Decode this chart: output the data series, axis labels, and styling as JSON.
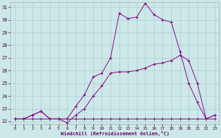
{
  "title": "",
  "xlabel": "Windchill (Refroidissement éolien,°C)",
  "ylabel": "",
  "bg_color": "#cce8e8",
  "line_color": "#880088",
  "grid_color": "#aacccc",
  "xmin": 0,
  "xmax": 23,
  "ymin": 22,
  "ymax": 31,
  "x_ticks": [
    0,
    1,
    2,
    3,
    4,
    5,
    6,
    7,
    8,
    9,
    10,
    11,
    12,
    13,
    14,
    15,
    16,
    17,
    18,
    19,
    20,
    21,
    22,
    23
  ],
  "y_ticks": [
    22,
    23,
    24,
    25,
    26,
    27,
    28,
    29,
    30,
    31
  ],
  "series1_x": [
    0,
    1,
    2,
    3,
    4,
    5,
    6,
    7,
    8,
    9,
    10,
    11,
    12,
    13,
    14,
    15,
    16,
    17,
    18,
    19,
    20,
    21,
    22,
    23
  ],
  "series1_y": [
    22.2,
    22.2,
    22.5,
    22.8,
    22.2,
    22.2,
    22.2,
    23.2,
    24.1,
    25.5,
    25.8,
    27.0,
    30.5,
    30.1,
    30.2,
    31.3,
    30.4,
    30.0,
    29.8,
    27.5,
    25.0,
    23.5,
    22.2,
    22.5
  ],
  "series2_x": [
    0,
    1,
    2,
    3,
    4,
    5,
    6,
    7,
    8,
    9,
    10,
    11,
    12,
    13,
    14,
    15,
    16,
    17,
    18,
    19,
    20,
    21,
    22,
    23
  ],
  "series2_y": [
    22.2,
    22.2,
    22.5,
    22.8,
    22.2,
    22.2,
    21.9,
    22.5,
    23.0,
    24.0,
    24.8,
    25.8,
    25.9,
    25.9,
    26.0,
    26.2,
    26.5,
    26.6,
    26.8,
    27.2,
    26.8,
    25.0,
    22.2,
    22.5
  ],
  "series3_x": [
    0,
    1,
    2,
    3,
    4,
    5,
    6,
    7,
    8,
    9,
    10,
    11,
    12,
    13,
    14,
    15,
    16,
    17,
    18,
    19,
    20,
    21,
    22,
    23
  ],
  "series3_y": [
    22.2,
    22.2,
    22.2,
    22.2,
    22.2,
    22.2,
    22.2,
    22.2,
    22.2,
    22.2,
    22.2,
    22.2,
    22.2,
    22.2,
    22.2,
    22.2,
    22.2,
    22.2,
    22.2,
    22.2,
    22.2,
    22.2,
    22.2,
    22.2
  ]
}
